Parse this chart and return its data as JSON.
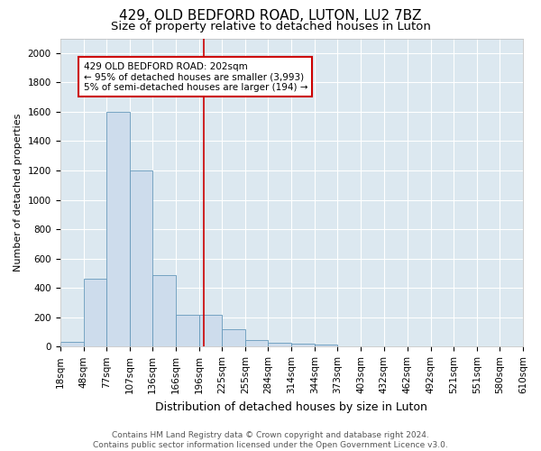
{
  "title": "429, OLD BEDFORD ROAD, LUTON, LU2 7BZ",
  "subtitle": "Size of property relative to detached houses in Luton",
  "xlabel": "Distribution of detached houses by size in Luton",
  "ylabel": "Number of detached properties",
  "bin_labels": [
    "18sqm",
    "48sqm",
    "77sqm",
    "107sqm",
    "136sqm",
    "166sqm",
    "196sqm",
    "225sqm",
    "255sqm",
    "284sqm",
    "314sqm",
    "344sqm",
    "373sqm",
    "403sqm",
    "432sqm",
    "462sqm",
    "492sqm",
    "521sqm",
    "551sqm",
    "580sqm",
    "610sqm"
  ],
  "bin_edges": [
    18,
    48,
    77,
    107,
    136,
    166,
    196,
    225,
    255,
    284,
    314,
    344,
    373,
    403,
    432,
    462,
    492,
    521,
    551,
    580,
    610
  ],
  "bar_heights": [
    35,
    460,
    1600,
    1200,
    490,
    215,
    215,
    120,
    45,
    25,
    20,
    15,
    0,
    0,
    0,
    0,
    0,
    0,
    0,
    0
  ],
  "bar_color": "#cddcec",
  "bar_edge_color": "#6699bb",
  "vline_x": 202,
  "vline_color": "#cc0000",
  "annotation_text": "429 OLD BEDFORD ROAD: 202sqm\n← 95% of detached houses are smaller (3,993)\n5% of semi-detached houses are larger (194) →",
  "annotation_box_color": "#ffffff",
  "annotation_box_edge": "#cc0000",
  "ylim": [
    0,
    2100
  ],
  "yticks": [
    0,
    200,
    400,
    600,
    800,
    1000,
    1200,
    1400,
    1600,
    1800,
    2000
  ],
  "background_color": "#dce8f0",
  "grid_color": "#ffffff",
  "fig_bg_color": "#ffffff",
  "footer_text": "Contains HM Land Registry data © Crown copyright and database right 2024.\nContains public sector information licensed under the Open Government Licence v3.0.",
  "title_fontsize": 11,
  "subtitle_fontsize": 9.5,
  "xlabel_fontsize": 9,
  "ylabel_fontsize": 8,
  "tick_fontsize": 7.5,
  "annotation_fontsize": 7.5,
  "footer_fontsize": 6.5
}
